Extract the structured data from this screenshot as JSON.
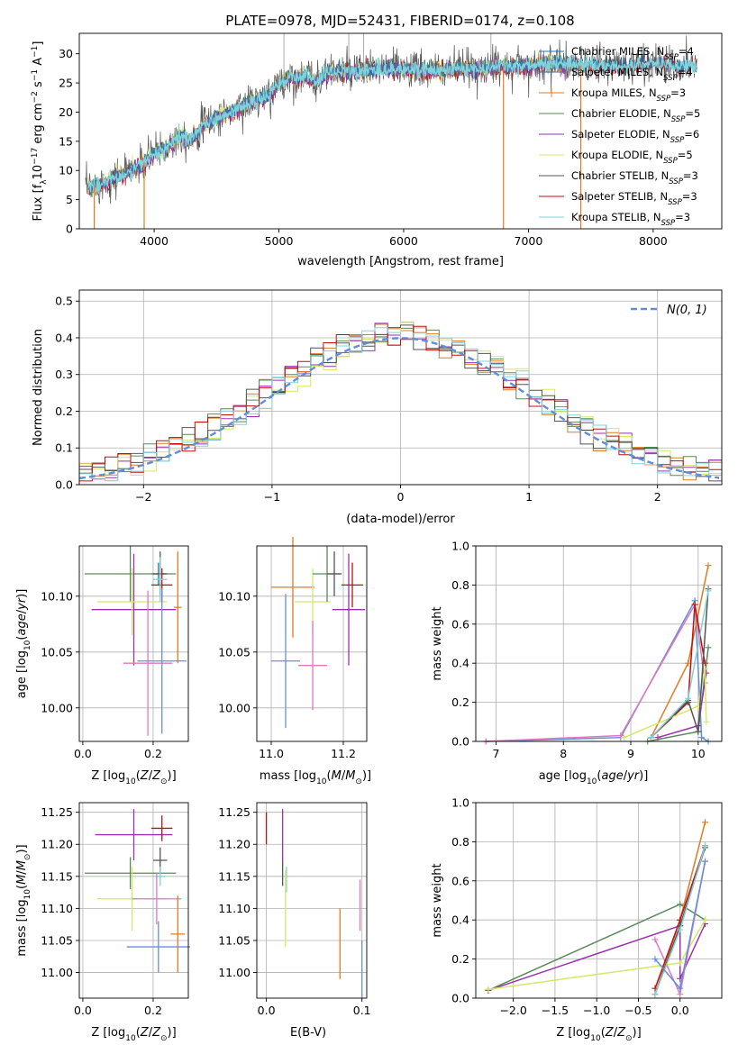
{
  "figure_title": "PLATE=0978, MJD=52431, FIBERID=0174, z=0.108",
  "colors": {
    "Chabrier MILES": "#1f77b4",
    "Salpeter MILES": "#4a6fa5",
    "Kroupa MILES": "#e07b25",
    "Chabrier ELODIE": "#5a8a5a",
    "Salpeter ELODIE": "#9b30b0",
    "Kroupa ELODIE": "#d4e86a",
    "Chabrier STELIB": "#555555",
    "Salpeter STELIB": "#c01010",
    "Kroupa STELIB": "#7fd3d9",
    "Normal": "#5f8fd8",
    "extra1": "#e377c2",
    "extra2": "#6a8fd6"
  },
  "chart_data": [
    {
      "id": "spectrum",
      "type": "line",
      "title": "PLATE=0978, MJD=52431, FIBERID=0174, z=0.108",
      "xlabel": "wavelength [Angstrom, rest frame]",
      "ylabel": "Flux [f_λ 10^-17 erg cm^-2 s^-1 A^-1]",
      "xlim": [
        3400,
        8550
      ],
      "ylim": [
        0,
        33.5
      ],
      "xticks": [
        4000,
        5000,
        6000,
        7000,
        8000
      ],
      "yticks": [
        0,
        5,
        10,
        15,
        20,
        25,
        30
      ],
      "grid": false,
      "legend": "right",
      "legend_entries": [
        {
          "name": "Chabrier MILES, N",
          "sub": "SSP",
          "suffix": "=4"
        },
        {
          "name": "Salpeter MILES, N",
          "sub": "SSP",
          "suffix": "=4"
        },
        {
          "name": "Kroupa MILES, N",
          "sub": "SSP",
          "suffix": "=3"
        },
        {
          "name": "Chabrier ELODIE, N",
          "sub": "SSP",
          "suffix": "=5"
        },
        {
          "name": "Salpeter ELODIE, N",
          "sub": "SSP",
          "suffix": "=6"
        },
        {
          "name": "Kroupa ELODIE, N",
          "sub": "SSP",
          "suffix": "=5"
        },
        {
          "name": "Chabrier STELIB, N",
          "sub": "SSP",
          "suffix": "=3"
        },
        {
          "name": "Salpeter STELIB, N",
          "sub": "SSP",
          "suffix": "=3"
        },
        {
          "name": "Kroupa STELIB, N",
          "sub": "SSP",
          "suffix": "=3"
        }
      ],
      "observed_envelope": [
        [
          3450,
          7
        ],
        [
          3600,
          8
        ],
        [
          3800,
          10
        ],
        [
          3900,
          11
        ],
        [
          4000,
          13
        ],
        [
          4100,
          14
        ],
        [
          4200,
          16
        ],
        [
          4300,
          15.5
        ],
        [
          4400,
          18
        ],
        [
          4500,
          19
        ],
        [
          4700,
          21
        ],
        [
          4800,
          22
        ],
        [
          4900,
          22.5
        ],
        [
          5000,
          25
        ],
        [
          5100,
          26
        ],
        [
          5200,
          26
        ],
        [
          5300,
          25.5
        ],
        [
          5400,
          27
        ],
        [
          5600,
          27
        ],
        [
          5800,
          27.5
        ],
        [
          6000,
          27.5
        ],
        [
          6200,
          27
        ],
        [
          6400,
          27.5
        ],
        [
          6600,
          27.5
        ],
        [
          6800,
          28
        ],
        [
          7000,
          28
        ],
        [
          7200,
          28.5
        ],
        [
          7400,
          28
        ],
        [
          7600,
          28
        ],
        [
          7800,
          28
        ],
        [
          8000,
          28.5
        ],
        [
          8200,
          28
        ],
        [
          8350,
          28
        ]
      ],
      "spikes": [
        [
          5040,
          33.5
        ],
        [
          5560,
          33.5
        ],
        [
          5680,
          33.5
        ],
        [
          6700,
          33.5
        ]
      ],
      "dips": [
        [
          3520,
          0
        ],
        [
          3920,
          0
        ],
        [
          6800,
          0
        ],
        [
          7420,
          0
        ]
      ]
    },
    {
      "id": "residuals",
      "type": "step",
      "xlabel": "(data-model)/error",
      "ylabel": "Normed distribution",
      "xlim": [
        -2.5,
        2.5
      ],
      "ylim": [
        0,
        0.53
      ],
      "xticks": [
        -2,
        -1,
        0,
        1,
        2
      ],
      "yticks": [
        0.0,
        0.1,
        0.2,
        0.3,
        0.4,
        0.5
      ],
      "grid": true,
      "legend": "upper right",
      "gauss_label": "N(0, 1)"
    },
    {
      "id": "age_vs_Z",
      "type": "errorbar",
      "xlabel": "Z [log10(Z/Z⊙)]",
      "ylabel": "age [log10(age/yr)]",
      "xlim": [
        -0.01,
        0.3
      ],
      "ylim": [
        9.97,
        10.145
      ],
      "xticks": [
        0.0,
        0.2
      ],
      "yticks": [
        10.0,
        10.05,
        10.1
      ],
      "grid": true,
      "points": [
        {
          "series": "Chabrier MILES",
          "x": 0.215,
          "y": 10.12,
          "xerr": 0.02,
          "yerr": 0.01
        },
        {
          "series": "Kroupa MILES",
          "x": 0.27,
          "y": 10.09,
          "xerr": 0.01,
          "yerr": 0.05
        },
        {
          "series": "Chabrier ELODIE",
          "x": 0.135,
          "y": 10.12,
          "xerr": 0.13,
          "yerr": 0.025
        },
        {
          "series": "Salpeter ELODIE",
          "x": 0.145,
          "y": 10.088,
          "xerr": 0.12,
          "yerr": 0.05
        },
        {
          "series": "Kroupa ELODIE",
          "x": 0.14,
          "y": 10.095,
          "xerr": 0.1,
          "yerr": 0.03
        },
        {
          "series": "Chabrier STELIB",
          "x": 0.22,
          "y": 10.12,
          "xerr": 0.02,
          "yerr": 0.02
        },
        {
          "series": "Salpeter STELIB",
          "x": 0.225,
          "y": 10.11,
          "xerr": 0.03,
          "yerr": 0.015
        },
        {
          "series": "Kroupa STELIB",
          "x": 0.22,
          "y": 10.115,
          "xerr": 0.02,
          "yerr": 0.02
        },
        {
          "series": "extra1",
          "x": 0.185,
          "y": 10.04,
          "xerr": 0.07,
          "yerr": 0.065
        },
        {
          "series": "extra2",
          "x": 0.225,
          "y": 10.042,
          "xerr": 0.07,
          "yerr": 0.065
        }
      ]
    },
    {
      "id": "age_vs_mass",
      "type": "errorbar",
      "xlabel": "mass [log10(M/M⊙)]",
      "ylim": [
        9.97,
        10.145
      ],
      "xlim": [
        10.96,
        11.265
      ],
      "xticks": [
        11.0,
        11.2
      ],
      "yticks": [
        10.0,
        10.05,
        10.1
      ],
      "grid": true,
      "points": [
        {
          "series": "extra2",
          "x": 11.04,
          "y": 10.042,
          "xerr": 0.04,
          "yerr": 0.06
        },
        {
          "series": "Kroupa MILES",
          "x": 11.06,
          "y": 10.108,
          "xerr": 0.06,
          "yerr": 0.045
        },
        {
          "series": "Kroupa ELODIE",
          "x": 11.115,
          "y": 10.095,
          "xerr": 0.05,
          "yerr": 0.03
        },
        {
          "series": "extra1",
          "x": 11.115,
          "y": 10.038,
          "xerr": 0.04,
          "yerr": 0.04
        },
        {
          "series": "Chabrier ELODIE",
          "x": 11.155,
          "y": 10.12,
          "xerr": 0.04,
          "yerr": 0.025
        },
        {
          "series": "Chabrier STELIB",
          "x": 11.175,
          "y": 10.12,
          "xerr": 0.02,
          "yerr": 0.02
        },
        {
          "series": "Salpeter ELODIE",
          "x": 11.215,
          "y": 10.088,
          "xerr": 0.045,
          "yerr": 0.05
        },
        {
          "series": "Salpeter STELIB",
          "x": 11.225,
          "y": 10.11,
          "xerr": 0.03,
          "yerr": 0.02
        }
      ]
    },
    {
      "id": "weight_vs_age",
      "type": "line",
      "xlabel": "age [log10(age/yr)]",
      "ylabel": "mass weight",
      "xlim": [
        6.7,
        10.35
      ],
      "ylim": [
        0,
        1.0
      ],
      "xticks": [
        7,
        8,
        9,
        10
      ],
      "yticks": [
        0.0,
        0.2,
        0.4,
        0.6,
        0.8,
        1.0
      ],
      "grid": true,
      "series": [
        {
          "name": "Normal",
          "points": [
            [
              6.85,
              0.0
            ],
            [
              8.85,
              0.02
            ],
            [
              9.95,
              0.72
            ],
            [
              10.05,
              0.02
            ],
            [
              10.15,
              0.0
            ]
          ]
        },
        {
          "name": "extra1",
          "points": [
            [
              6.85,
              0.0
            ],
            [
              8.85,
              0.03
            ],
            [
              9.95,
              0.7
            ],
            [
              10.1,
              0.3
            ]
          ]
        },
        {
          "name": "Kroupa MILES",
          "points": [
            [
              9.3,
              0.02
            ],
            [
              9.85,
              0.4
            ],
            [
              10.15,
              0.9
            ]
          ]
        },
        {
          "name": "Salpeter STELIB",
          "points": [
            [
              9.3,
              0.02
            ],
            [
              9.85,
              0.2
            ],
            [
              9.95,
              0.7
            ],
            [
              10.1,
              0.4
            ]
          ]
        },
        {
          "name": "Chabrier ELODIE",
          "points": [
            [
              9.25,
              0.0
            ],
            [
              10.0,
              0.05
            ],
            [
              10.15,
              0.48
            ]
          ]
        },
        {
          "name": "Salpeter ELODIE",
          "points": [
            [
              9.4,
              0.02
            ],
            [
              10.0,
              0.08
            ],
            [
              10.12,
              0.35
            ]
          ]
        },
        {
          "name": "Kroupa ELODIE",
          "points": [
            [
              8.9,
              0.02
            ],
            [
              10.0,
              0.18
            ],
            [
              10.1,
              0.37
            ],
            [
              10.12,
              0.1
            ]
          ]
        },
        {
          "name": "Chabrier STELIB",
          "points": [
            [
              9.3,
              0.02
            ],
            [
              9.85,
              0.21
            ],
            [
              10.0,
              0.05
            ],
            [
              10.15,
              0.78
            ]
          ]
        },
        {
          "name": "Kroupa STELIB",
          "points": [
            [
              9.3,
              0.02
            ],
            [
              9.85,
              0.22
            ],
            [
              10.15,
              0.77
            ]
          ]
        }
      ]
    },
    {
      "id": "mass_vs_Z",
      "type": "errorbar",
      "xlabel": "Z [log10(Z/Z⊙)]",
      "ylabel": "mass [log10(M/M⊙)]",
      "xlim": [
        -0.01,
        0.3
      ],
      "ylim": [
        10.96,
        11.265
      ],
      "xticks": [
        0.0,
        0.2
      ],
      "yticks": [
        11.0,
        11.05,
        11.1,
        11.15,
        11.2,
        11.25
      ],
      "grid": true,
      "points": [
        {
          "series": "Salpeter ELODIE",
          "x": 0.145,
          "y": 11.215,
          "xerr": 0.11,
          "yerr": 0.04
        },
        {
          "series": "Salpeter STELIB",
          "x": 0.225,
          "y": 11.225,
          "xerr": 0.03,
          "yerr": 0.02
        },
        {
          "series": "Chabrier STELIB",
          "x": 0.22,
          "y": 11.175,
          "xerr": 0.02,
          "yerr": 0.02
        },
        {
          "series": "Chabrier ELODIE",
          "x": 0.135,
          "y": 11.155,
          "xerr": 0.13,
          "yerr": 0.025
        },
        {
          "series": "Kroupa STELIB",
          "x": 0.22,
          "y": 11.15,
          "xerr": 0.015,
          "yerr": 0.015
        },
        {
          "series": "Kroupa ELODIE",
          "x": 0.14,
          "y": 11.115,
          "xerr": 0.1,
          "yerr": 0.05
        },
        {
          "series": "extra1",
          "x": 0.21,
          "y": 11.115,
          "xerr": 0.07,
          "yerr": 0.04
        },
        {
          "series": "Kroupa MILES",
          "x": 0.27,
          "y": 11.06,
          "xerr": 0.02,
          "yerr": 0.06
        },
        {
          "series": "extra2",
          "x": 0.215,
          "y": 11.04,
          "xerr": 0.09,
          "yerr": 0.04
        }
      ]
    },
    {
      "id": "mass_vs_EBV",
      "type": "errorbar",
      "xlabel": "E(B-V)",
      "xlim": [
        -0.01,
        0.105
      ],
      "ylim": [
        10.96,
        11.265
      ],
      "xticks": [
        0.0,
        0.1
      ],
      "yticks": [
        11.0,
        11.05,
        11.1,
        11.15,
        11.2,
        11.25
      ],
      "grid": true,
      "points": [
        {
          "series": "Salpeter STELIB",
          "x": 0.0,
          "y": 11.225,
          "xerr": 0,
          "yerr": 0.025
        },
        {
          "series": "Salpeter ELODIE",
          "x": 0.017,
          "y": 11.215,
          "xerr": 0,
          "yerr": 0.04
        },
        {
          "series": "Chabrier STELIB",
          "x": 0.017,
          "y": 11.155,
          "xerr": 0,
          "yerr": 0.02
        },
        {
          "series": "Kroupa STELIB",
          "x": 0.021,
          "y": 11.145,
          "xerr": 0,
          "yerr": 0.02
        },
        {
          "series": "Kroupa ELODIE",
          "x": 0.02,
          "y": 11.1,
          "xerr": 0,
          "yerr": 0.06
        },
        {
          "series": "Kroupa MILES",
          "x": 0.077,
          "y": 11.045,
          "xerr": 0,
          "yerr": 0.055
        },
        {
          "series": "extra1",
          "x": 0.098,
          "y": 11.105,
          "xerr": 0,
          "yerr": 0.04
        },
        {
          "series": "extra2",
          "x": 0.1,
          "y": 11.005,
          "xerr": 0,
          "yerr": 0.045
        }
      ]
    },
    {
      "id": "weight_vs_Z",
      "type": "line",
      "xlabel": "Z [log10(Z/Z⊙)]",
      "ylabel": "mass weight",
      "xlim": [
        -2.45,
        0.5
      ],
      "ylim": [
        0,
        1.0
      ],
      "xticks": [
        -2.0,
        -1.5,
        -1.0,
        -0.5,
        0.0
      ],
      "yticks": [
        0.0,
        0.2,
        0.4,
        0.6,
        0.8,
        1.0
      ],
      "grid": true,
      "series": [
        {
          "name": "Chabrier ELODIE",
          "points": [
            [
              -2.3,
              0.04
            ],
            [
              0.0,
              0.48
            ],
            [
              0.3,
              0.4
            ]
          ]
        },
        {
          "name": "Salpeter ELODIE",
          "points": [
            [
              -2.3,
              0.04
            ],
            [
              0.0,
              0.37
            ],
            [
              0.0,
              0.1
            ],
            [
              0.3,
              0.38
            ]
          ]
        },
        {
          "name": "Kroupa ELODIE",
          "points": [
            [
              -2.3,
              0.045
            ],
            [
              0.0,
              0.18
            ],
            [
              0.3,
              0.4
            ]
          ]
        },
        {
          "name": "extra1",
          "points": [
            [
              -0.3,
              0.3
            ],
            [
              0.0,
              0.02
            ],
            [
              0.3,
              0.7
            ]
          ]
        },
        {
          "name": "Kroupa MILES",
          "points": [
            [
              -0.3,
              0.02
            ],
            [
              0.0,
              0.4
            ],
            [
              0.3,
              0.9
            ]
          ]
        },
        {
          "name": "Salpeter STELIB",
          "points": [
            [
              -0.3,
              0.05
            ],
            [
              0.0,
              0.4
            ],
            [
              0.3,
              0.78
            ]
          ]
        },
        {
          "name": "Chabrier STELIB",
          "points": [
            [
              -0.3,
              0.02
            ],
            [
              0.0,
              0.37
            ],
            [
              0.3,
              0.77
            ]
          ]
        },
        {
          "name": "Kroupa STELIB",
          "points": [
            [
              -0.3,
              0.02
            ],
            [
              0.0,
              0.35
            ],
            [
              0.3,
              0.78
            ]
          ]
        },
        {
          "name": "Normal",
          "points": [
            [
              -0.3,
              0.2
            ],
            [
              0.0,
              0.05
            ],
            [
              0.3,
              0.7
            ]
          ]
        }
      ]
    }
  ]
}
